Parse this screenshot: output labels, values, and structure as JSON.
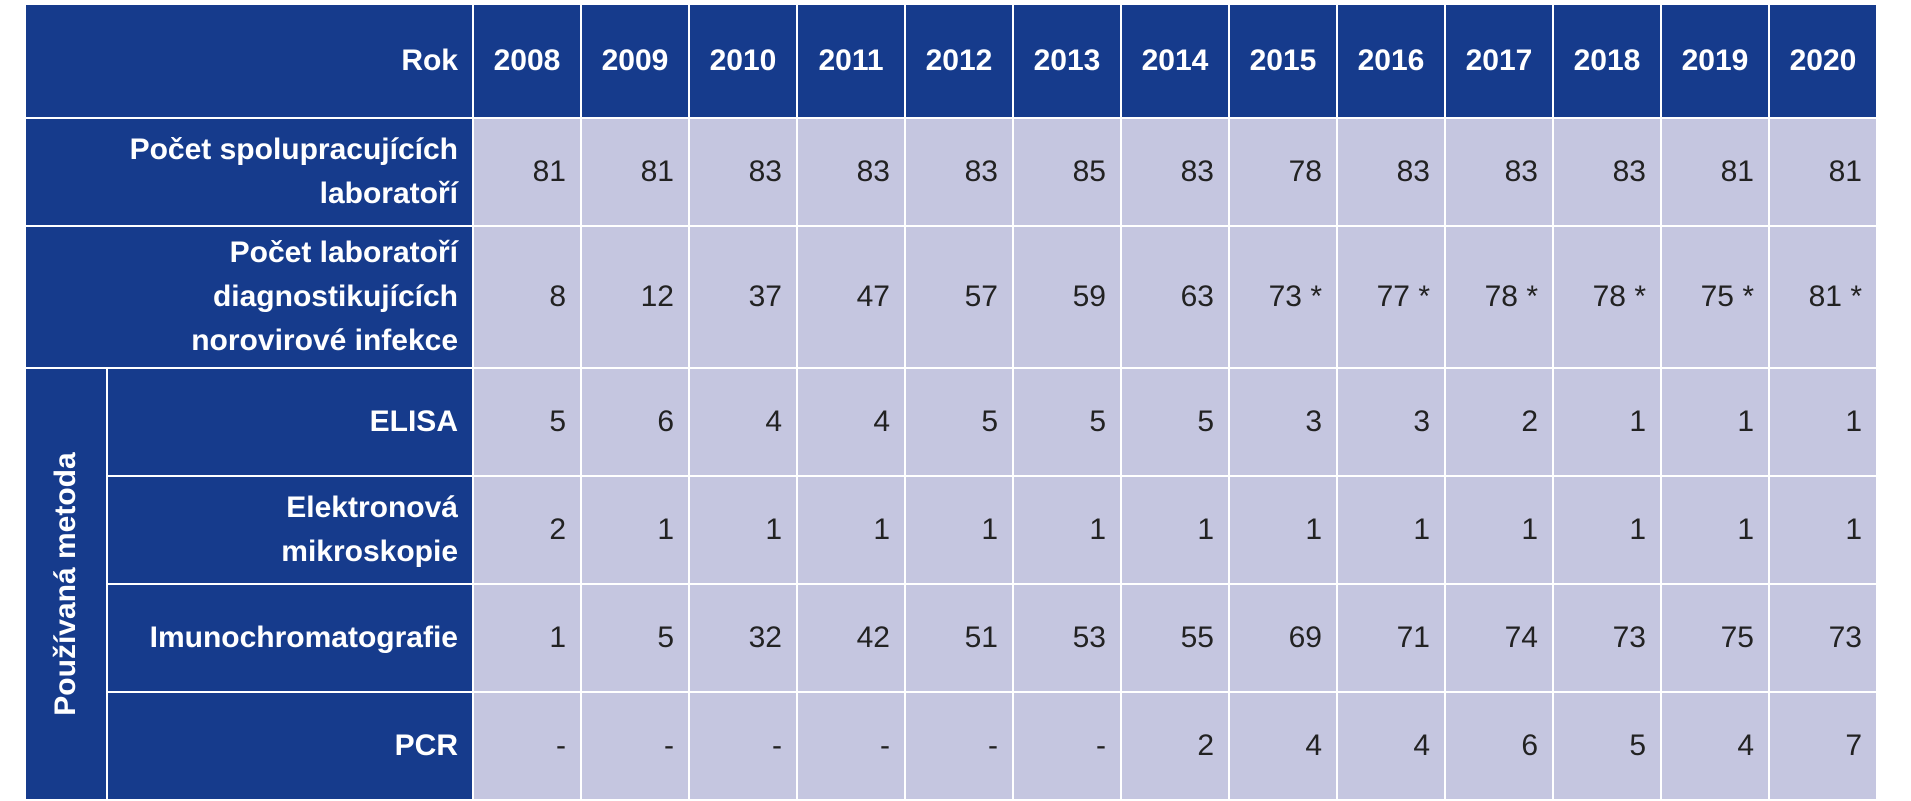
{
  "header": {
    "label": "Rok",
    "years": [
      "2008",
      "2009",
      "2010",
      "2011",
      "2012",
      "2013",
      "2014",
      "2015",
      "2016",
      "2017",
      "2018",
      "2019",
      "2020"
    ]
  },
  "rows": [
    {
      "label": [
        "Počet spolupracujících",
        "laboratoří"
      ],
      "values": [
        "81",
        "81",
        "83",
        "83",
        "83",
        "85",
        "83",
        "78",
        "83",
        "83",
        "83",
        "81",
        "81"
      ]
    },
    {
      "label": [
        "Počet laboratoří",
        "diagnostikujících",
        "norovirové infekce"
      ],
      "values": [
        "8",
        "12",
        "37",
        "47",
        "57",
        "59",
        "63",
        "73 *",
        "77 *",
        "78 *",
        "78 *",
        "75 *",
        "81 *"
      ]
    }
  ],
  "method_group": {
    "label": "Používaná metoda",
    "rows": [
      {
        "label": [
          "ELISA"
        ],
        "values": [
          "5",
          "6",
          "4",
          "4",
          "5",
          "5",
          "5",
          "3",
          "3",
          "2",
          "1",
          "1",
          "1"
        ]
      },
      {
        "label": [
          "Elektronová",
          "mikroskopie"
        ],
        "values": [
          "2",
          "1",
          "1",
          "1",
          "1",
          "1",
          "1",
          "1",
          "1",
          "1",
          "1",
          "1",
          "1"
        ]
      },
      {
        "label": [
          "Imunochromatografie"
        ],
        "values": [
          "1",
          "5",
          "32",
          "42",
          "51",
          "53",
          "55",
          "69",
          "71",
          "74",
          "73",
          "75",
          "73"
        ]
      },
      {
        "label": [
          "PCR"
        ],
        "values": [
          "-",
          "-",
          "-",
          "-",
          "-",
          "-",
          "2",
          "4",
          "4",
          "6",
          "5",
          "4",
          "7"
        ]
      }
    ]
  },
  "colors": {
    "header_bg": "#163b8c",
    "cell_bg": "#c5c6e0",
    "header_text": "#ffffff",
    "cell_text": "#222222"
  }
}
